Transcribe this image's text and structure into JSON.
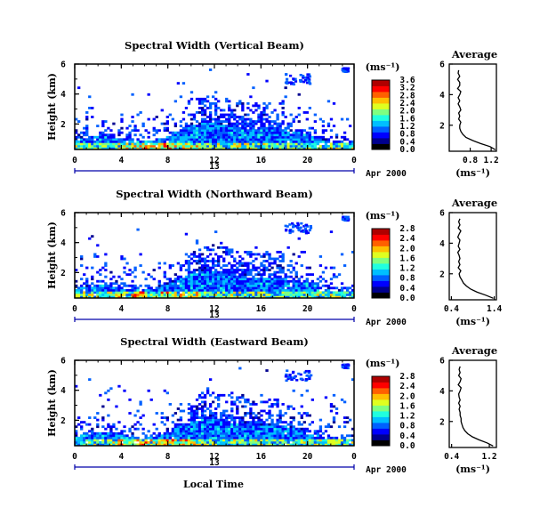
{
  "colors": {
    "axis": "#000000",
    "date_bar": "#0000aa",
    "colormap": [
      "#000000",
      "#00008f",
      "#0000ff",
      "#0060ff",
      "#00bfff",
      "#20ffdf",
      "#7fff80",
      "#dfff20",
      "#ffbf00",
      "#ff6000",
      "#ff0000",
      "#af0000"
    ]
  },
  "figure": {
    "xlabel": "Local Time",
    "date_tick": "13",
    "date_label": "Apr 2000",
    "ylabel": "Height (km)",
    "avg_title": "Average",
    "unit": "(ms⁻¹)"
  },
  "chart_data": [
    {
      "type": "heatmap",
      "title": "Spectral Width (Vertical Beam)",
      "xlabel": "Local Time",
      "ylabel": "Height (km)",
      "xlim": [
        0,
        24
      ],
      "ylim": [
        0.3,
        6
      ],
      "x_ticks": [
        "0",
        "4",
        "8",
        "12",
        "16",
        "20",
        "0"
      ],
      "y_ticks": [
        "2",
        "4",
        "6"
      ],
      "colorbar": {
        "label": "(ms⁻¹)",
        "range": [
          0,
          3.8
        ],
        "ticks": [
          "0.0",
          "0.4",
          "0.8",
          "1.2",
          "1.6",
          "2.0",
          "2.4",
          "2.8",
          "3.2",
          "3.6"
        ]
      },
      "profile": {
        "title": "Average",
        "xlabel": "(ms⁻¹)",
        "xlim": [
          0.4,
          1.3
        ],
        "x_ticks": [
          "0.8",
          "1.2"
        ],
        "y_ticks": [
          "2",
          "4",
          "6"
        ],
        "height_km": [
          0.4,
          0.6,
          0.8,
          1.0,
          1.2,
          1.4,
          1.6,
          1.8,
          2.0,
          2.2,
          2.4,
          2.6,
          2.8,
          3.0,
          3.2,
          3.4,
          3.6,
          3.8,
          4.0,
          4.2,
          4.4,
          4.6,
          4.8,
          5.0,
          5.2,
          5.4,
          5.6
        ],
        "mean_width": [
          1.28,
          1.18,
          1.0,
          0.85,
          0.72,
          0.66,
          0.62,
          0.6,
          0.6,
          0.62,
          0.58,
          0.6,
          0.58,
          0.62,
          0.6,
          0.57,
          0.6,
          0.57,
          0.6,
          0.62,
          0.56,
          0.6,
          0.6,
          0.56,
          0.6,
          0.57,
          0.58
        ]
      }
    },
    {
      "type": "heatmap",
      "title": "Spectral Width (Northward Beam)",
      "xlabel": "Local Time",
      "ylabel": "Height (km)",
      "xlim": [
        0,
        24
      ],
      "ylim": [
        0.3,
        6
      ],
      "x_ticks": [
        "0",
        "4",
        "8",
        "12",
        "16",
        "20",
        "0"
      ],
      "y_ticks": [
        "2",
        "4",
        "6"
      ],
      "colorbar": {
        "label": "(ms⁻¹)",
        "range": [
          0,
          3.0
        ],
        "ticks": [
          "0.0",
          "0.4",
          "0.8",
          "1.2",
          "1.6",
          "2.0",
          "2.4",
          "2.8"
        ]
      },
      "profile": {
        "title": "Average",
        "xlabel": "(ms⁻¹)",
        "xlim": [
          0.35,
          1.45
        ],
        "x_ticks": [
          "0.4",
          "1.4"
        ],
        "y_ticks": [
          "2",
          "4",
          "6"
        ],
        "height_km": [
          0.4,
          0.6,
          0.8,
          1.0,
          1.2,
          1.4,
          1.6,
          1.8,
          2.0,
          2.2,
          2.4,
          2.6,
          2.8,
          3.0,
          3.2,
          3.4,
          3.6,
          3.8,
          4.0,
          4.2,
          4.4,
          4.6,
          4.8,
          5.0,
          5.2,
          5.4,
          5.6
        ],
        "mean_width": [
          1.38,
          1.2,
          1.0,
          0.85,
          0.75,
          0.68,
          0.64,
          0.6,
          0.58,
          0.62,
          0.56,
          0.6,
          0.57,
          0.6,
          0.58,
          0.55,
          0.6,
          0.56,
          0.58,
          0.6,
          0.55,
          0.58,
          0.62,
          0.56,
          0.6,
          0.57,
          0.6
        ]
      }
    },
    {
      "type": "heatmap",
      "title": "Spectral Width (Eastward Beam)",
      "xlabel": "Local Time",
      "ylabel": "Height (km)",
      "xlim": [
        0,
        24
      ],
      "ylim": [
        0.3,
        6
      ],
      "x_ticks": [
        "0",
        "4",
        "8",
        "12",
        "16",
        "20",
        "0"
      ],
      "y_ticks": [
        "2",
        "4",
        "6"
      ],
      "colorbar": {
        "label": "(ms⁻¹)",
        "range": [
          0,
          3.0
        ],
        "ticks": [
          "0.0",
          "0.4",
          "0.8",
          "1.2",
          "1.6",
          "2.0",
          "2.4",
          "2.8"
        ]
      },
      "profile": {
        "title": "Average",
        "xlabel": "(ms⁻¹)",
        "xlim": [
          0.35,
          1.35
        ],
        "x_ticks": [
          "0.4",
          "1.2"
        ],
        "y_ticks": [
          "2",
          "4",
          "6"
        ],
        "height_km": [
          0.4,
          0.6,
          0.8,
          1.0,
          1.2,
          1.4,
          1.6,
          1.8,
          2.0,
          2.2,
          2.4,
          2.6,
          2.8,
          3.0,
          3.2,
          3.4,
          3.6,
          3.8,
          4.0,
          4.2,
          4.4,
          4.6,
          4.8,
          5.0,
          5.2,
          5.4,
          5.6
        ],
        "mean_width": [
          1.28,
          1.15,
          0.98,
          0.84,
          0.74,
          0.68,
          0.64,
          0.62,
          0.6,
          0.6,
          0.58,
          0.58,
          0.56,
          0.58,
          0.55,
          0.58,
          0.56,
          0.55,
          0.58,
          0.6,
          0.54,
          0.58,
          0.6,
          0.55,
          0.58,
          0.56,
          0.58
        ]
      }
    }
  ]
}
